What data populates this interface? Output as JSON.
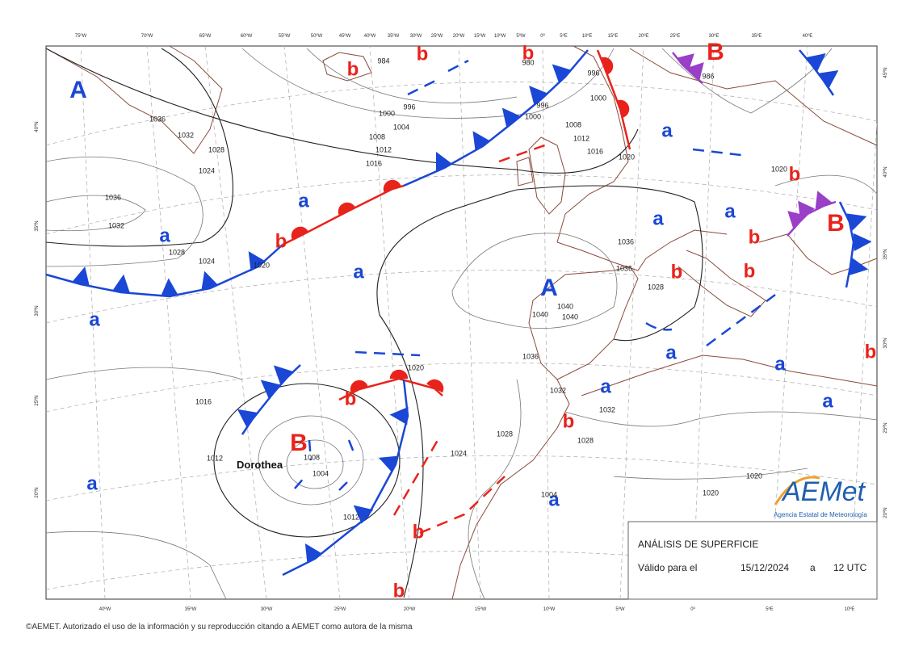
{
  "top_longitudes": [
    "75ºW",
    "70ºW",
    "65ºW",
    "60ºW",
    "55ºW",
    "50ºW",
    "45ºW",
    "40ºW",
    "35ºW",
    "30ºW",
    "25ºW",
    "20ºW",
    "15ºW",
    "10ºW",
    "5ºW",
    "0º",
    "5ºE",
    "10ºE",
    "15ºE",
    "20ºE",
    "25ºE",
    "30ºE",
    "35ºE",
    "40ºE"
  ],
  "bottom_longitudes": [
    "40ºW",
    "35ºW",
    "30ºW",
    "25ºW",
    "20ºW",
    "15ºW",
    "10ºW",
    "5ºW",
    "0º",
    "5ºE",
    "10ºE"
  ],
  "left_latitudes": [
    "40ºN",
    "35ºN",
    "30ºN",
    "25ºN",
    "20ºN"
  ],
  "right_latitudes": [
    "45ºN",
    "40ºN",
    "35ºN",
    "30ºN",
    "25ºN",
    "20ºN"
  ],
  "highs": [
    "A",
    "a",
    "a",
    "a",
    "a",
    "A",
    "a",
    "a",
    "a",
    "a",
    "a",
    "a",
    "a",
    "a",
    "a"
  ],
  "lows": [
    "b",
    "b",
    "b",
    "B",
    "b",
    "b",
    "B",
    "b",
    "b",
    "b",
    "b",
    "b",
    "B",
    "b",
    "b",
    "b"
  ],
  "isobar_labels": [
    "984",
    "996",
    "1000",
    "1004",
    "1008",
    "1012",
    "1016",
    "980",
    "996",
    "1000",
    "996",
    "1000",
    "1008",
    "1012",
    "1016",
    "1020",
    "1028",
    "1024",
    "1032",
    "1036",
    "1036",
    "1032",
    "1028",
    "1024",
    "1020",
    "1036",
    "1036",
    "1028",
    "1040",
    "1040",
    "1040",
    "1036",
    "1032",
    "1032",
    "1028",
    "1028",
    "1024",
    "1020",
    "1016",
    "1012",
    "1008",
    "1004",
    "1012",
    "1020",
    "1020",
    "1020",
    "986",
    "1004"
  ],
  "storm_name": "Dorothea",
  "info_box": {
    "title": "ANÁLISIS DE SUPERFICIE",
    "valid_label": "Válido para el",
    "date": "15/12/2024",
    "separator": "a",
    "time": "12 UTC"
  },
  "logo": {
    "name": "AEMet",
    "subtitle": "Agencia Estatal de Meteorología"
  },
  "copyright": "©AEMET. Autorizado el uso de la información y su reproducción citando a AEMET como autora de la misma"
}
